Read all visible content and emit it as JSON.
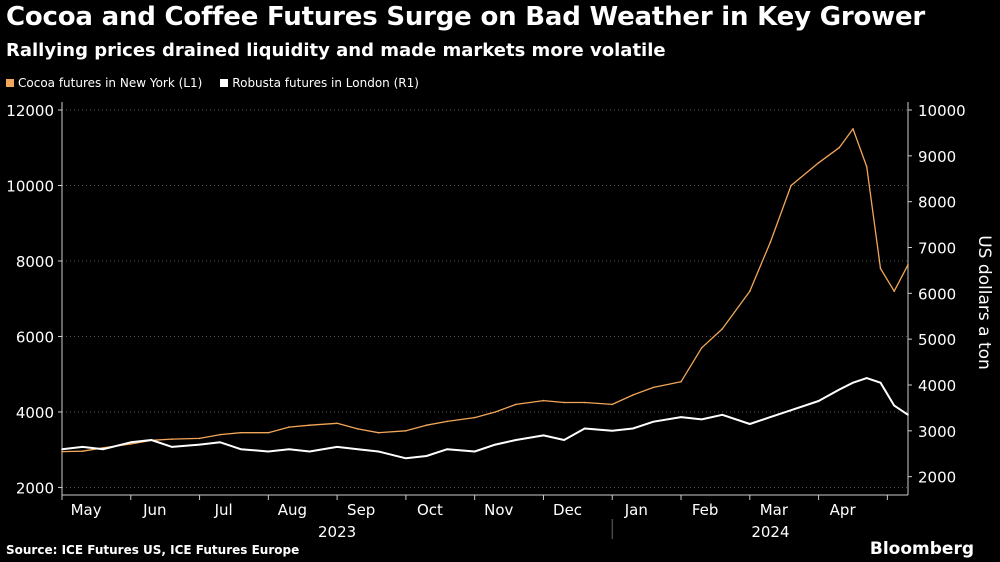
{
  "title": "Cocoa and Coffee Futures Surge on Bad Weather in Key Grower",
  "subtitle": "Rallying prices drained liquidity and made markets more volatile",
  "legend": {
    "cocoa": "Cocoa futures in New York (L1)",
    "robusta": "Robusta futures in London (R1)"
  },
  "source": "Source: ICE Futures US, ICE Futures Europe",
  "brand": "Bloomberg",
  "colors": {
    "cocoa": "#f2a65a",
    "robusta": "#ffffff",
    "axis": "#cccccc",
    "grid": "#555555"
  },
  "chart_data": {
    "type": "line",
    "left_axis": {
      "ylim": [
        1800,
        12000
      ],
      "ticks": [
        2000,
        4000,
        6000,
        8000,
        10000,
        12000
      ]
    },
    "right_axis": {
      "ylim": [
        1600,
        10000
      ],
      "ticks": [
        2000,
        3000,
        4000,
        5000,
        6000,
        7000,
        8000,
        9000,
        10000
      ],
      "label": "US dollars a ton"
    },
    "x_range": [
      0,
      12.3
    ],
    "months": [
      {
        "label": "May",
        "pos": 0.35
      },
      {
        "label": "Jun",
        "pos": 1.35
      },
      {
        "label": "Jul",
        "pos": 2.35
      },
      {
        "label": "Aug",
        "pos": 3.35
      },
      {
        "label": "Sep",
        "pos": 4.35
      },
      {
        "label": "Oct",
        "pos": 5.35
      },
      {
        "label": "Nov",
        "pos": 6.35
      },
      {
        "label": "Dec",
        "pos": 7.35
      },
      {
        "label": "Jan",
        "pos": 8.35
      },
      {
        "label": "Feb",
        "pos": 9.35
      },
      {
        "label": "Mar",
        "pos": 10.35
      },
      {
        "label": "Apr",
        "pos": 11.35
      }
    ],
    "years": [
      {
        "label": "2023",
        "pos": 4.0
      },
      {
        "label": "2024",
        "pos": 10.3
      }
    ],
    "year_divider": 8.0,
    "series": [
      {
        "name": "Cocoa futures in New York (L1)",
        "axis": "left",
        "x": [
          0,
          0.3,
          0.6,
          1.0,
          1.3,
          1.6,
          2.0,
          2.3,
          2.6,
          3.0,
          3.3,
          3.6,
          4.0,
          4.3,
          4.6,
          5.0,
          5.3,
          5.6,
          6.0,
          6.3,
          6.6,
          7.0,
          7.3,
          7.6,
          8.0,
          8.3,
          8.6,
          9.0,
          9.3,
          9.6,
          10.0,
          10.3,
          10.6,
          11.0,
          11.3,
          11.5,
          11.7,
          11.9,
          12.1,
          12.3
        ],
        "values": [
          2950,
          2960,
          3050,
          3150,
          3250,
          3280,
          3300,
          3400,
          3450,
          3450,
          3600,
          3650,
          3700,
          3550,
          3450,
          3500,
          3650,
          3750,
          3850,
          4000,
          4200,
          4300,
          4250,
          4250,
          4200,
          4450,
          4650,
          4800,
          5700,
          6200,
          7200,
          8500,
          10000,
          10600,
          11000,
          11500,
          10500,
          7800,
          7200,
          7900
        ]
      },
      {
        "name": "Robusta futures in London (R1)",
        "axis": "right",
        "x": [
          0,
          0.3,
          0.6,
          1.0,
          1.3,
          1.6,
          2.0,
          2.3,
          2.6,
          3.0,
          3.3,
          3.6,
          4.0,
          4.3,
          4.6,
          5.0,
          5.3,
          5.6,
          6.0,
          6.3,
          6.6,
          7.0,
          7.3,
          7.6,
          8.0,
          8.3,
          8.6,
          9.0,
          9.3,
          9.6,
          10.0,
          10.3,
          10.6,
          11.0,
          11.3,
          11.5,
          11.7,
          11.9,
          12.1,
          12.3
        ],
        "values": [
          2600,
          2650,
          2600,
          2750,
          2800,
          2650,
          2700,
          2750,
          2600,
          2550,
          2600,
          2550,
          2650,
          2600,
          2550,
          2400,
          2450,
          2600,
          2550,
          2700,
          2800,
          2900,
          2800,
          3050,
          3000,
          3050,
          3200,
          3300,
          3250,
          3350,
          3150,
          3300,
          3450,
          3650,
          3900,
          4050,
          4150,
          4050,
          3550,
          3350
        ]
      }
    ]
  }
}
